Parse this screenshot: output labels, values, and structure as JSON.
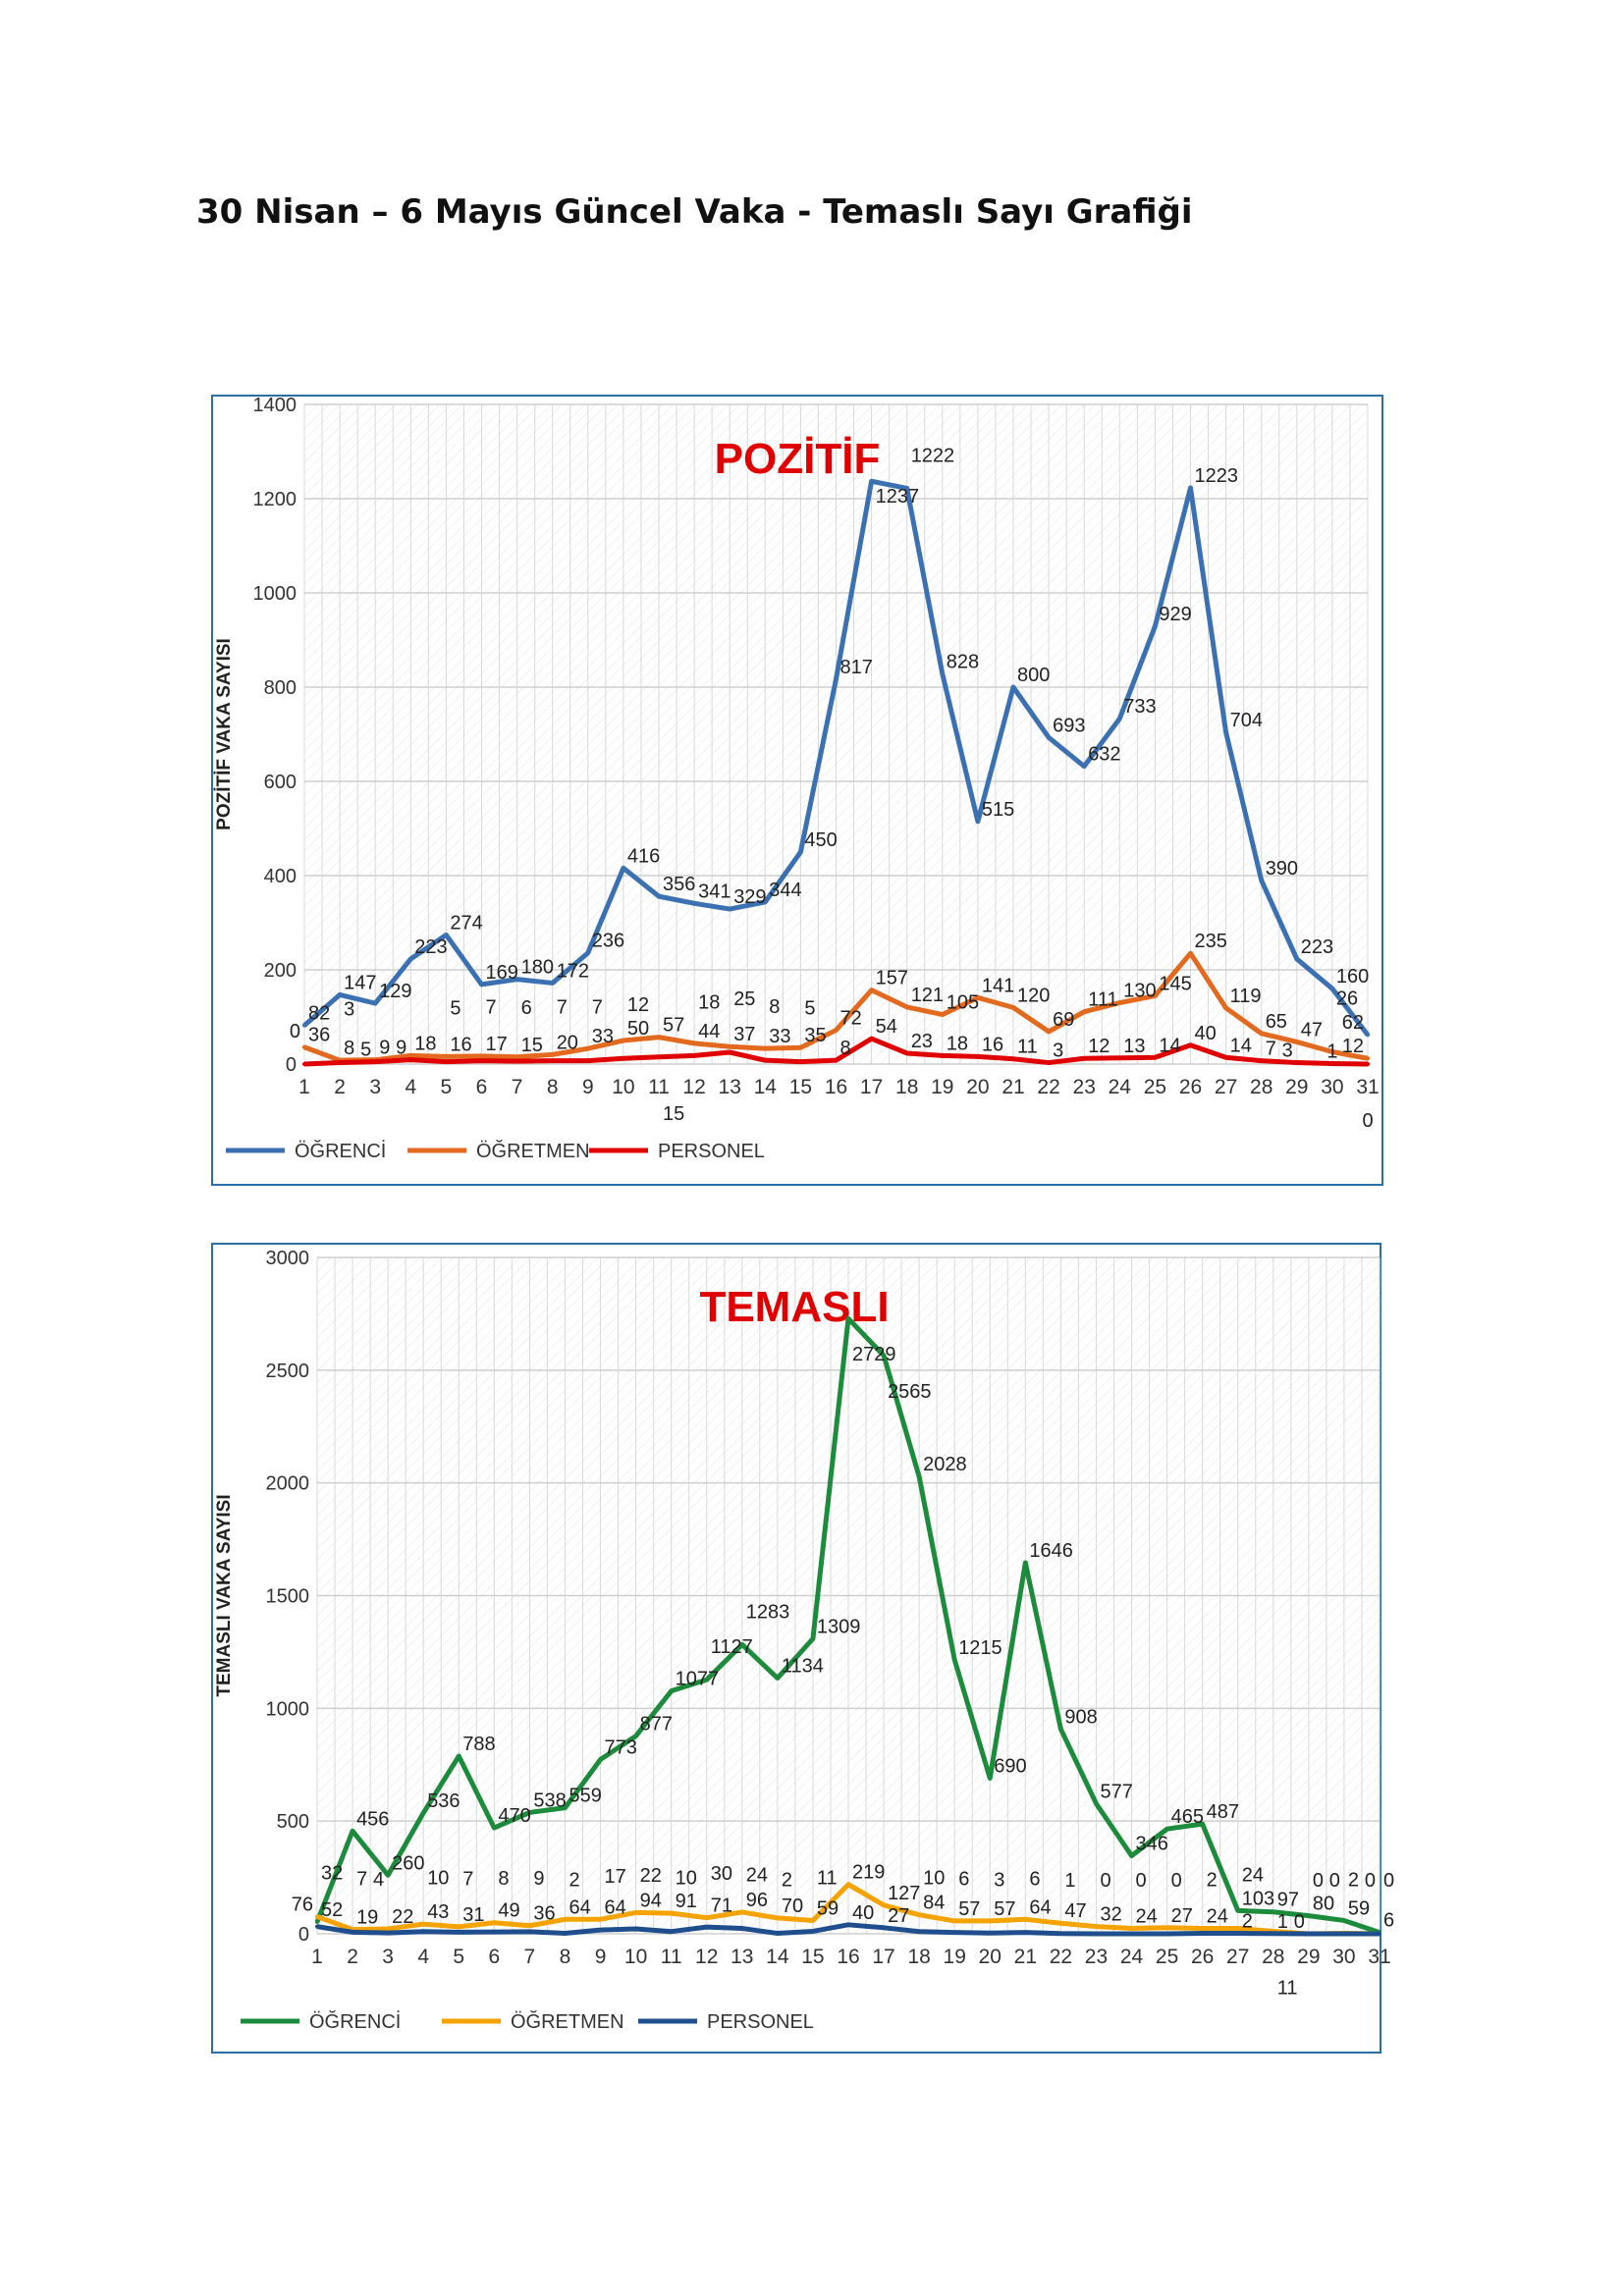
{
  "page_title": "30 Nisan – 6 Mayıs Güncel Vaka - Temaslı Sayı Grafiği",
  "chart_data": [
    {
      "type": "line",
      "title": "POZİTİF",
      "xlabel": "",
      "ylabel": "POZİTİF VAKA SAYISI",
      "ylim": [
        0,
        1400
      ],
      "yticks": [
        0,
        200,
        400,
        600,
        800,
        1000,
        1200,
        1400
      ],
      "x": [
        1,
        2,
        3,
        4,
        5,
        6,
        7,
        8,
        9,
        10,
        11,
        12,
        13,
        14,
        15,
        16,
        17,
        18,
        19,
        20,
        21,
        22,
        23,
        24,
        25,
        26,
        27,
        28,
        29,
        30,
        31
      ],
      "grid": true,
      "legend": "bottom-left",
      "series": [
        {
          "name": "ÖĞRENCİ",
          "color": "#3b70b2",
          "values": [
            82,
            147,
            129,
            223,
            274,
            169,
            180,
            172,
            236,
            416,
            356,
            341,
            329,
            344,
            450,
            817,
            1237,
            1222,
            828,
            515,
            800,
            693,
            632,
            733,
            929,
            1223,
            704,
            390,
            223,
            160,
            62
          ]
        },
        {
          "name": "ÖĞRETMEN",
          "color": "#e2691d",
          "values": [
            36,
            8,
            9,
            18,
            16,
            17,
            15,
            20,
            33,
            50,
            57,
            44,
            37,
            33,
            35,
            72,
            157,
            121,
            105,
            141,
            120,
            69,
            111,
            130,
            145,
            235,
            119,
            65,
            47,
            26,
            12
          ]
        },
        {
          "name": "PERSONEL",
          "color": "#e00000",
          "values": [
            0,
            3,
            5,
            9,
            5,
            7,
            6,
            7,
            7,
            12,
            15,
            18,
            25,
            8,
            5,
            8,
            54,
            23,
            18,
            16,
            11,
            3,
            12,
            13,
            14,
            40,
            14,
            7,
            3,
            1,
            0
          ]
        }
      ]
    },
    {
      "type": "line",
      "title": "TEMASLI",
      "xlabel": "",
      "ylabel": "TEMASLI VAKA SAYISI",
      "ylim": [
        0,
        3000
      ],
      "yticks": [
        0,
        500,
        1000,
        1500,
        2000,
        2500,
        3000
      ],
      "x": [
        1,
        2,
        3,
        4,
        5,
        6,
        7,
        8,
        9,
        10,
        11,
        12,
        13,
        14,
        15,
        16,
        17,
        18,
        19,
        20,
        21,
        22,
        23,
        24,
        25,
        26,
        27,
        28,
        29,
        30,
        31
      ],
      "grid": true,
      "legend": "bottom-left",
      "series": [
        {
          "name": "ÖĞRENCİ",
          "color": "#1d8b3c",
          "values": [
            52,
            456,
            260,
            536,
            788,
            470,
            538,
            559,
            773,
            877,
            1077,
            1127,
            1283,
            1134,
            1309,
            2729,
            2565,
            2028,
            1215,
            690,
            1646,
            908,
            577,
            346,
            465,
            487,
            103,
            97,
            80,
            59,
            6
          ]
        },
        {
          "name": "ÖĞRETMEN",
          "color": "#f4a300",
          "values": [
            76,
            19,
            22,
            43,
            31,
            49,
            36,
            64,
            64,
            94,
            91,
            71,
            96,
            70,
            59,
            219,
            127,
            84,
            57,
            57,
            64,
            47,
            32,
            24,
            27,
            24,
            24,
            11,
            0,
            2,
            0
          ]
        },
        {
          "name": "PERSONEL",
          "color": "#1f4e8c",
          "values": [
            32,
            7,
            4,
            10,
            7,
            8,
            9,
            2,
            17,
            22,
            10,
            30,
            24,
            2,
            11,
            40,
            27,
            10,
            6,
            3,
            6,
            1,
            0,
            0,
            0,
            2,
            2,
            1,
            0,
            0,
            0
          ]
        }
      ]
    }
  ]
}
